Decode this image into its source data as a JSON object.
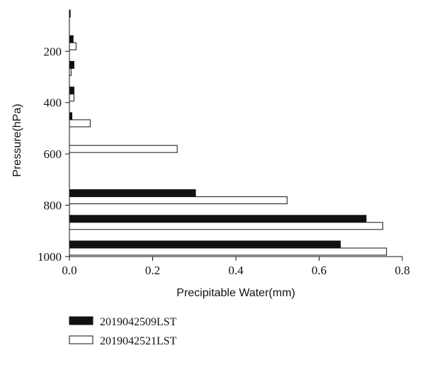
{
  "chart_data": {
    "type": "bar",
    "orientation": "horizontal",
    "title": "",
    "xlabel": "Precipitable Water(mm)",
    "ylabel": "Pressure(hPa)",
    "xlim": [
      0,
      0.8
    ],
    "ylim": [
      1000,
      50
    ],
    "x_ticks": [
      "0.0",
      "0.2",
      "0.4",
      "0.6",
      "0.8"
    ],
    "y_ticks": [
      "200",
      "400",
      "600",
      "800",
      "1000"
    ],
    "x_tick_values": [
      0,
      0.2,
      0.4,
      0.6,
      0.8
    ],
    "y_tick_values": [
      200,
      400,
      600,
      800,
      1000
    ],
    "categories": [
      100,
      200,
      300,
      400,
      500,
      600,
      700,
      800,
      900,
      1000
    ],
    "series": [
      {
        "name": "2019042509LST",
        "color": "#111111",
        "values": [
          0.002,
          0.009,
          0.011,
          0.011,
          0.006,
          0.0,
          0.0,
          0.303,
          0.713,
          0.651
        ]
      },
      {
        "name": "2019042521LST",
        "color": "#ffffff",
        "values": [
          0.0,
          0.016,
          0.004,
          0.011,
          0.05,
          0.259,
          0.0,
          0.523,
          0.753,
          0.762
        ]
      }
    ],
    "grid": false,
    "legend_position": "bottom-left"
  }
}
